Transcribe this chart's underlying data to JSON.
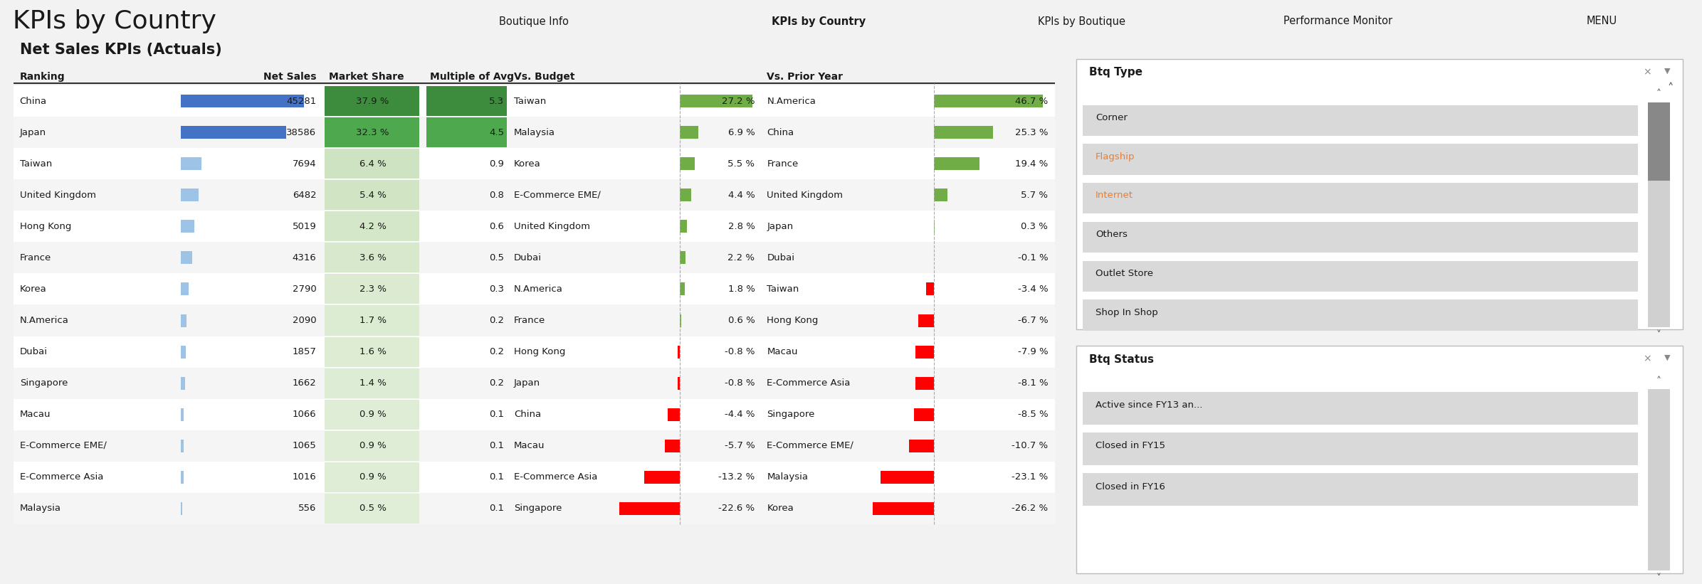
{
  "title": "KPIs by Country",
  "subtitle": "Net Sales KPIs (Actuals)",
  "nav_items": [
    "Boutique Info",
    "KPIs by Country",
    "KPIs by Boutique",
    "Performance Monitor",
    "MENU"
  ],
  "nav_bold": "KPIs by Country",
  "ranking_countries": [
    "China",
    "Japan",
    "Taiwan",
    "United Kingdom",
    "Hong Kong",
    "France",
    "Korea",
    "N.America",
    "Dubai",
    "Singapore",
    "Macau",
    "E-Commerce EME∕",
    "E-Commerce Asia",
    "Malaysia"
  ],
  "net_sales": [
    45281,
    38586,
    7694,
    6482,
    5019,
    4316,
    2790,
    2090,
    1857,
    1662,
    1066,
    1065,
    1016,
    556
  ],
  "market_share_str": [
    "37.9 %",
    "32.3 %",
    "6.4 %",
    "5.4 %",
    "4.2 %",
    "3.6 %",
    "2.3 %",
    "1.7 %",
    "1.6 %",
    "1.4 %",
    "0.9 %",
    "0.9 %",
    "0.9 %",
    "0.5 %"
  ],
  "market_share_vals": [
    37.9,
    32.3,
    6.4,
    5.4,
    4.2,
    3.6,
    2.3,
    1.7,
    1.6,
    1.4,
    0.9,
    0.9,
    0.9,
    0.5
  ],
  "multiple_of_avg": [
    "5.3",
    "4.5",
    "0.9",
    "0.8",
    "0.6",
    "0.5",
    "0.3",
    "0.2",
    "0.2",
    "0.2",
    "0.1",
    "0.1",
    "0.1",
    "0.1"
  ],
  "vs_budget_countries": [
    "Taiwan",
    "Malaysia",
    "Korea",
    "E-Commerce EME∕",
    "United Kingdom",
    "Dubai",
    "N.America",
    "France",
    "Hong Kong",
    "Japan",
    "China",
    "Macau",
    "E-Commerce Asia",
    "Singapore"
  ],
  "vs_budget_vals": [
    27.2,
    6.9,
    5.5,
    4.4,
    2.8,
    2.2,
    1.8,
    0.6,
    -0.8,
    -0.8,
    -4.4,
    -5.7,
    -13.2,
    -22.6
  ],
  "vs_budget_labels": [
    "27.2 %",
    "6.9 %",
    "5.5 %",
    "4.4 %",
    "2.8 %",
    "2.2 %",
    "1.8 %",
    "0.6 %",
    "-0.8 %",
    "-0.8 %",
    "-4.4 %",
    "-5.7 %",
    "-13.2 %",
    "-22.6 %"
  ],
  "vs_prior_countries": [
    "N.America",
    "China",
    "France",
    "United Kingdom",
    "Japan",
    "Dubai",
    "Taiwan",
    "Hong Kong",
    "Macau",
    "E-Commerce Asia",
    "Singapore",
    "E-Commerce EME∕",
    "Malaysia",
    "Korea"
  ],
  "vs_prior_vals": [
    46.7,
    25.3,
    19.4,
    5.7,
    0.3,
    -0.1,
    -3.4,
    -6.7,
    -7.9,
    -8.1,
    -8.5,
    -10.7,
    -23.1,
    -26.2
  ],
  "vs_prior_labels": [
    "46.7 %",
    "25.3 %",
    "19.4 %",
    "5.7 %",
    "0.3 %",
    "-0.1 %",
    "-3.4 %",
    "-6.7 %",
    "-7.9 %",
    "-8.1 %",
    "-8.5 %",
    "-10.7 %",
    "-23.1 %",
    "-26.2 %"
  ],
  "btq_type_items": [
    "Corner",
    "Flagship",
    "Internet",
    "Others",
    "Outlet Store",
    "Shop In Shop"
  ],
  "btq_status_items": [
    "Active since FY13 an...",
    "Closed in FY15",
    "Closed in FY16"
  ],
  "col_green_dark": "#3a7d44",
  "col_green_mid": "#4ea052",
  "col_green_light": "#70ad47",
  "col_green_vlight": "#e2efda",
  "col_blue_dark": "#4472c4",
  "col_blue_light": "#9dc3e6",
  "col_red": "#ff0000",
  "col_header_bg": "#d4d4d4",
  "col_body_bg": "#f2f2f2",
  "col_white": "#ffffff",
  "col_btq_bg": "#e8e8e8"
}
